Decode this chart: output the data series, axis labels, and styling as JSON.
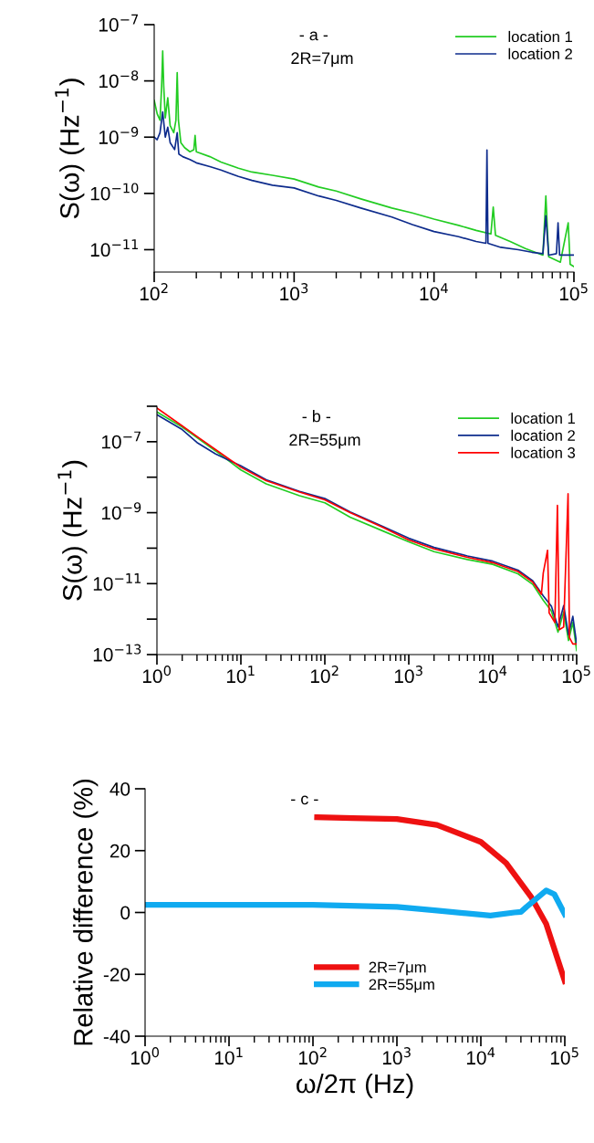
{
  "chart_data": [
    {
      "type": "line",
      "title": "- a -",
      "subtitle": "2R=7μm",
      "ylabel": "S(ω) (Hz$^{−1}$)",
      "log": "xy",
      "legend": "top right",
      "grid": false,
      "xlim": [
        100,
        100000
      ],
      "xticks": [
        {
          "value": 100,
          "label": "10$^{2}$"
        },
        {
          "value": 1000,
          "label": "10$^{3}$"
        },
        {
          "value": 10000,
          "label": "10$^{4}$"
        },
        {
          "value": 100000,
          "label": "10$^{5}$"
        }
      ],
      "ylim": [
        4e-12,
        1e-07
      ],
      "yticks": [
        {
          "value": 1e-11,
          "label": "10$^{−11}$"
        },
        {
          "value": 1e-10,
          "label": "10$^{−10}$"
        },
        {
          "value": 1e-09,
          "label": "10$^{−9}$"
        },
        {
          "value": 1e-08,
          "label": "10$^{−8}$"
        },
        {
          "value": 1e-07,
          "label": "10$^{−7}$"
        }
      ],
      "series": [
        {
          "name": "location 1",
          "color": "#22cc22",
          "x": [
            100,
            105,
            110,
            113,
            115,
            117,
            120,
            125,
            130,
            138,
            143,
            146,
            149,
            155,
            165,
            180,
            192,
            196,
            200,
            250,
            300,
            400,
            500,
            700,
            1000,
            1500,
            2000,
            3000,
            5000,
            7000,
            10000,
            15000,
            20000,
            25500,
            26500,
            27500,
            35000,
            45000,
            60000,
            63000,
            66000,
            80000,
            91000,
            94000,
            100000
          ],
          "values": [
            4.5e-09,
            2.6e-09,
            2e-09,
            8e-09,
            3.4e-08,
            8e-09,
            2.2e-09,
            5e-09,
            1.6e-09,
            1.2e-09,
            2e-09,
            1.4e-08,
            2e-09,
            8e-10,
            6.5e-10,
            5.5e-10,
            6e-10,
            1.07e-09,
            5.5e-10,
            4.5e-10,
            3.6e-10,
            2.8e-10,
            2.4e-10,
            2.1e-10,
            1.8e-10,
            1.3e-10,
            1.1e-10,
            8e-11,
            5.5e-11,
            4.5e-11,
            3.5e-11,
            2.7e-11,
            2.2e-11,
            1.9e-11,
            5.7e-11,
            1.8e-11,
            1.4e-11,
            1.05e-11,
            8e-12,
            9e-11,
            7.5e-12,
            6e-12,
            3e-11,
            5.5e-12,
            5e-12
          ]
        },
        {
          "name": "location 2",
          "color": "#0d2b8c",
          "x": [
            100,
            105,
            110,
            115,
            120,
            125,
            130,
            140,
            146,
            150,
            160,
            180,
            200,
            250,
            300,
            400,
            500,
            700,
            1000,
            1500,
            2000,
            3000,
            5000,
            7000,
            10000,
            15000,
            20000,
            23500,
            23900,
            24300,
            30000,
            40000,
            50000,
            60000,
            63000,
            66000,
            75000,
            77000,
            79000,
            90000,
            100000
          ],
          "values": [
            1e-09,
            9e-10,
            1.2e-09,
            2.8e-09,
            1e-09,
            1.5e-09,
            8e-10,
            6e-10,
            1.2e-09,
            5e-10,
            4.5e-10,
            4e-10,
            3.5e-10,
            3e-10,
            2.6e-10,
            2e-10,
            1.7e-10,
            1.4e-10,
            1.25e-10,
            9e-11,
            7.5e-11,
            5.5e-11,
            3.8e-11,
            2.8e-11,
            2.1e-11,
            1.7e-11,
            1.4e-11,
            1.3e-11,
            5.9e-10,
            1.3e-11,
            1.1e-11,
            1e-11,
            9e-12,
            8.5e-12,
            4e-11,
            8e-12,
            8.5e-12,
            3e-11,
            8e-12,
            8e-12,
            8e-12
          ]
        }
      ]
    },
    {
      "type": "line",
      "title": "- b -",
      "subtitle": "2R=55μm",
      "ylabel": "S(ω) (Hz$^{−1}$)",
      "log": "xy",
      "legend": "top right",
      "grid": false,
      "xlim": [
        1,
        100000
      ],
      "xticks": [
        {
          "value": 1,
          "label": "10$^{0}$"
        },
        {
          "value": 10,
          "label": "10$^{1}$"
        },
        {
          "value": 100,
          "label": "10$^{2}$"
        },
        {
          "value": 1000,
          "label": "10$^{3}$"
        },
        {
          "value": 10000,
          "label": "10$^{4}$"
        },
        {
          "value": 100000,
          "label": "10$^{5}$"
        }
      ],
      "ylim": [
        1e-13,
        1e-06
      ],
      "yticks": [
        {
          "value": 1e-13,
          "label": "10$^{−13}$"
        },
        {
          "value": 1e-12,
          "label": null
        },
        {
          "value": 1e-11,
          "label": "10$^{−11}$"
        },
        {
          "value": 1e-10,
          "label": null
        },
        {
          "value": 1e-09,
          "label": "10$^{−9}$"
        },
        {
          "value": 1e-08,
          "label": null
        },
        {
          "value": 1e-07,
          "label": "10$^{−7}$"
        },
        {
          "value": 1e-06,
          "label": null
        }
      ],
      "series": [
        {
          "name": "location 1",
          "color": "#22cc22",
          "x": [
            1,
            2,
            3,
            5,
            10,
            20,
            50,
            100,
            200,
            500,
            1000,
            2000,
            5000,
            10000,
            20000,
            30000,
            40000,
            50000,
            60000,
            70000,
            80000,
            90000,
            100000
          ],
          "values": [
            6.9e-07,
            2.6e-07,
            1.3e-07,
            5.5e-08,
            1.6e-08,
            6.5e-09,
            3e-09,
            1.9e-09,
            7.5e-10,
            3e-10,
            1.5e-10,
            8e-11,
            4.8e-11,
            3.5e-11,
            1.9e-11,
            9.5e-12,
            3.4e-12,
            1.7e-12,
            4.3e-13,
            1.6e-12,
            2.5e-13,
            8e-13,
            1.3e-13
          ]
        },
        {
          "name": "location 2",
          "color": "#0d2b8c",
          "x": [
            1,
            2,
            3,
            5,
            10,
            20,
            50,
            100,
            200,
            500,
            1000,
            2000,
            5000,
            10000,
            20000,
            30000,
            40000,
            50000,
            60000,
            70000,
            80000,
            90000,
            100000
          ],
          "values": [
            5.8e-07,
            2.2e-07,
            9.5e-08,
            4.5e-08,
            2.1e-08,
            8.5e-09,
            4e-09,
            2.5e-09,
            1.05e-09,
            4e-10,
            1.9e-10,
            1.05e-10,
            6e-11,
            4.3e-11,
            2.4e-11,
            1.2e-11,
            4.5e-12,
            2.3e-12,
            6e-13,
            2.4e-12,
            3.6e-13,
            1.2e-12,
            2e-13
          ]
        },
        {
          "name": "location 3",
          "color": "#ff0000",
          "x": [
            1,
            2,
            3,
            5,
            10,
            20,
            50,
            100,
            200,
            500,
            1000,
            2000,
            5000,
            10000,
            20000,
            30000,
            38000,
            40000,
            45000,
            47000,
            55000,
            59000,
            62000,
            70000,
            79000,
            82000,
            90000,
            100000
          ],
          "values": [
            8.9e-07,
            2.8e-07,
            1.4e-07,
            6e-08,
            1.9e-08,
            8e-09,
            3.8e-09,
            2.3e-09,
            1e-09,
            3.8e-10,
            1.7e-10,
            9.5e-11,
            5.5e-11,
            3.9e-11,
            2.2e-11,
            1.1e-11,
            5e-12,
            2e-11,
            8.7e-11,
            1.5e-12,
            8e-13,
            1.6e-09,
            5e-13,
            6e-13,
            3.4e-09,
            3e-13,
            2e-13,
            2e-13
          ]
        }
      ]
    },
    {
      "type": "line",
      "title": "- c -",
      "xlabel": "ω/2π (Hz)",
      "ylabel": "Relative difference (%)",
      "log": "x",
      "legend": "bottom",
      "grid": false,
      "xlim": [
        1,
        100000
      ],
      "xticks": [
        {
          "value": 1,
          "label": "10$^{0}$"
        },
        {
          "value": 10,
          "label": "10$^{1}$"
        },
        {
          "value": 100,
          "label": "10$^{2}$"
        },
        {
          "value": 1000,
          "label": "10$^{3}$"
        },
        {
          "value": 10000,
          "label": "10$^{4}$"
        },
        {
          "value": 100000,
          "label": "10$^{5}$"
        }
      ],
      "ylim": [
        -40,
        40
      ],
      "yticks": [
        -40,
        -20,
        0,
        20,
        40
      ],
      "series": [
        {
          "name": "2R=7μm",
          "color": "#ee1111",
          "x": [
            112,
            300,
            1000,
            3000,
            10000,
            20000,
            40000,
            60000,
            100000
          ],
          "values": [
            30.8,
            30.5,
            30.2,
            28.3,
            22.8,
            16,
            4.9,
            -3.7,
            -22.2
          ]
        },
        {
          "name": "2R=55μm",
          "color": "#10aaf0",
          "x": [
            1,
            10,
            100,
            1000,
            3000,
            13000,
            25000,
            30000,
            35000,
            60000,
            75000,
            100000
          ],
          "values": [
            2.5,
            2.5,
            2.5,
            1.8,
            0.6,
            -1,
            0,
            0.2,
            1.8,
            7.1,
            5.9,
            -0.6
          ]
        }
      ]
    }
  ]
}
